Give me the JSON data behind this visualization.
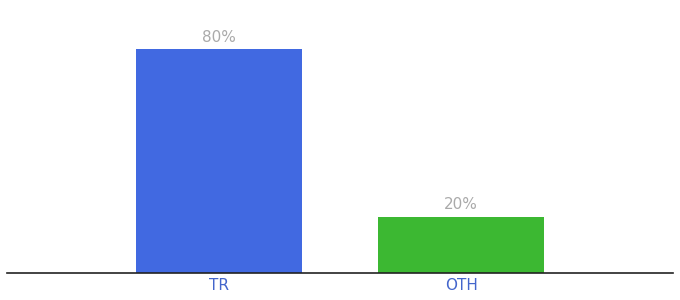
{
  "categories": [
    "TR",
    "OTH"
  ],
  "values": [
    80,
    20
  ],
  "bar_colors": [
    "#4169E1",
    "#3CB832"
  ],
  "label_texts": [
    "80%",
    "20%"
  ],
  "background_color": "#ffffff",
  "bar_width": 0.55,
  "figsize": [
    6.8,
    3.0
  ],
  "dpi": 100,
  "xlabel_fontsize": 11,
  "label_fontsize": 11,
  "label_color": "#aaaaaa",
  "xlim": [
    -0.35,
    1.85
  ],
  "ylim": [
    0,
    95
  ]
}
